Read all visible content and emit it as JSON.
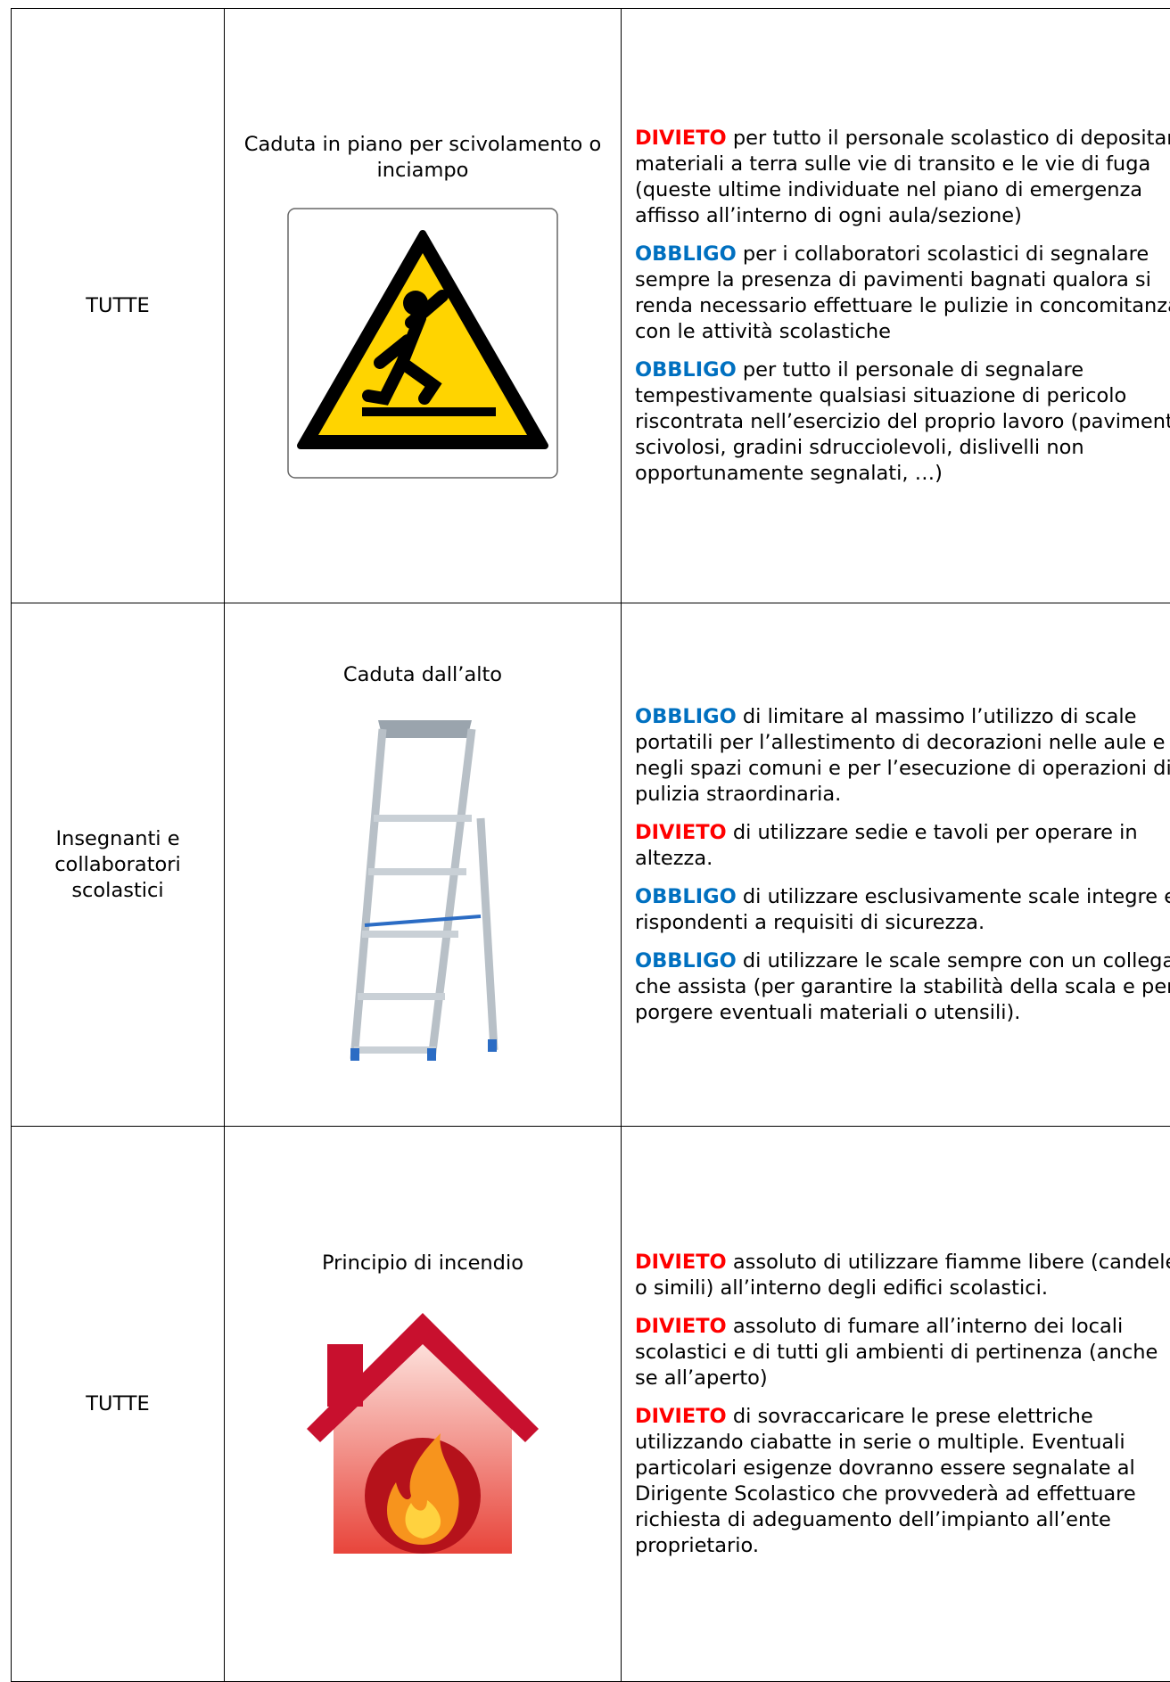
{
  "table": {
    "rows": [
      {
        "group": "TUTTE",
        "hazard": "Caduta in piano per scivolamento o inciampo",
        "measures": [
          {
            "keyword": "DIVIETO",
            "color": "#ff0000",
            "text": "per tutto il personale scolastico di depositare materiali a terra sulle vie di transito e le vie di fuga (queste ultime individuate nel piano di emergenza affisso all’interno di ogni aula/sezione)"
          },
          {
            "keyword": "OBBLIGO",
            "color": "#0070c0",
            "text": "per i collaboratori scolastici di segnalare sempre la presenza di pavimenti bagnati qualora si renda necessario effettuare le pulizie in concomitanza con le attività scolastiche"
          },
          {
            "keyword": "OBBLIGO",
            "color": "#0070c0",
            "text": "per tutto il personale di segnalare tempestivamente qualsiasi situazione di pericolo riscontrata nell’esercizio del proprio lavoro (pavimenti scivolosi, gradini sdrucciolevoli, dislivelli non opportunamente segnalati, …)"
          }
        ]
      },
      {
        "group": "Insegnanti e collaboratori scolastici",
        "hazard": "Caduta dall’alto",
        "measures": [
          {
            "keyword": "OBBLIGO",
            "color": "#0070c0",
            "text": "di limitare al massimo l’utilizzo di scale portatili per l’allestimento di decorazioni nelle aule e negli spazi comuni e per l’esecuzione di operazioni di pulizia straordinaria."
          },
          {
            "keyword": "DIVIETO",
            "color": "#ff0000",
            "text": "di utilizzare sedie e tavoli per operare in altezza."
          },
          {
            "keyword": "OBBLIGO",
            "color": "#0070c0",
            "text": "di utilizzare esclusivamente scale integre e rispondenti a requisiti di sicurezza."
          },
          {
            "keyword": "OBBLIGO",
            "color": "#0070c0",
            "text": "di utilizzare le scale sempre con un collega che assista (per garantire la stabilità della scala e per porgere eventuali materiali o utensili)."
          }
        ]
      },
      {
        "group": "TUTTE",
        "hazard": "Principio di incendio",
        "measures": [
          {
            "keyword": "DIVIETO",
            "color": "#ff0000",
            "text": "assoluto di utilizzare fiamme libere (candele o simili) all’interno degli edifici scolastici."
          },
          {
            "keyword": "DIVIETO",
            "color": "#ff0000",
            "text": "assoluto di fumare all’interno dei locali scolastici e di tutti gli ambienti di pertinenza (anche se all’aperto)"
          },
          {
            "keyword": "DIVIETO",
            "color": "#ff0000",
            "text": "di sovraccaricare le prese elettriche utilizzando ciabatte in serie o multiple. Eventuali particolari esigenze dovranno essere segnalate al Dirigente Scolastico che provvederà ad effettuare richiesta di adeguamento dell’impianto all’ente proprietario."
          }
        ]
      }
    ]
  }
}
